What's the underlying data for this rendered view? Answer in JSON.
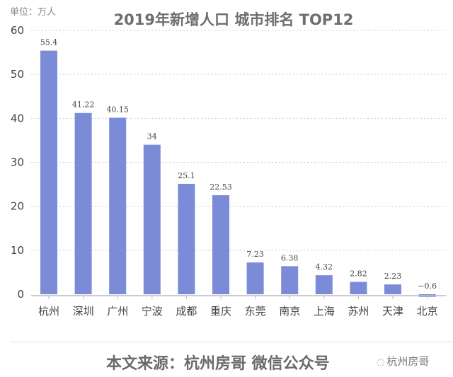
{
  "unit_label": "单位：万人",
  "title": "2019年新增人口 城市排名 TOP12",
  "source": "本文来源：杭州房哥 微信公众号",
  "watermark": {
    "icon": "wechat-icon",
    "text": "杭州房哥"
  },
  "bar_color": "#7b8bd8",
  "chart_data": {
    "type": "bar",
    "title": "2019年新增人口 城市排名 TOP12",
    "ylabel": "单位：万人",
    "categories": [
      "杭州",
      "深圳",
      "广州",
      "宁波",
      "成都",
      "重庆",
      "东莞",
      "南京",
      "上海",
      "苏州",
      "天津",
      "北京"
    ],
    "values": [
      55.4,
      41.22,
      40.15,
      34,
      25.1,
      22.53,
      7.23,
      6.38,
      4.32,
      2.82,
      2.23,
      -0.6
    ],
    "data_labels": [
      "55.4",
      "41.22",
      "40.15",
      "34",
      "25.1",
      "22.53",
      "7.23",
      "6.38",
      "4.32",
      "2.82",
      "2.23",
      "−0.6"
    ],
    "yticks": [
      "0",
      "10",
      "20",
      "30",
      "40",
      "50",
      "60"
    ],
    "ylim": [
      0,
      60
    ],
    "grid": true
  }
}
